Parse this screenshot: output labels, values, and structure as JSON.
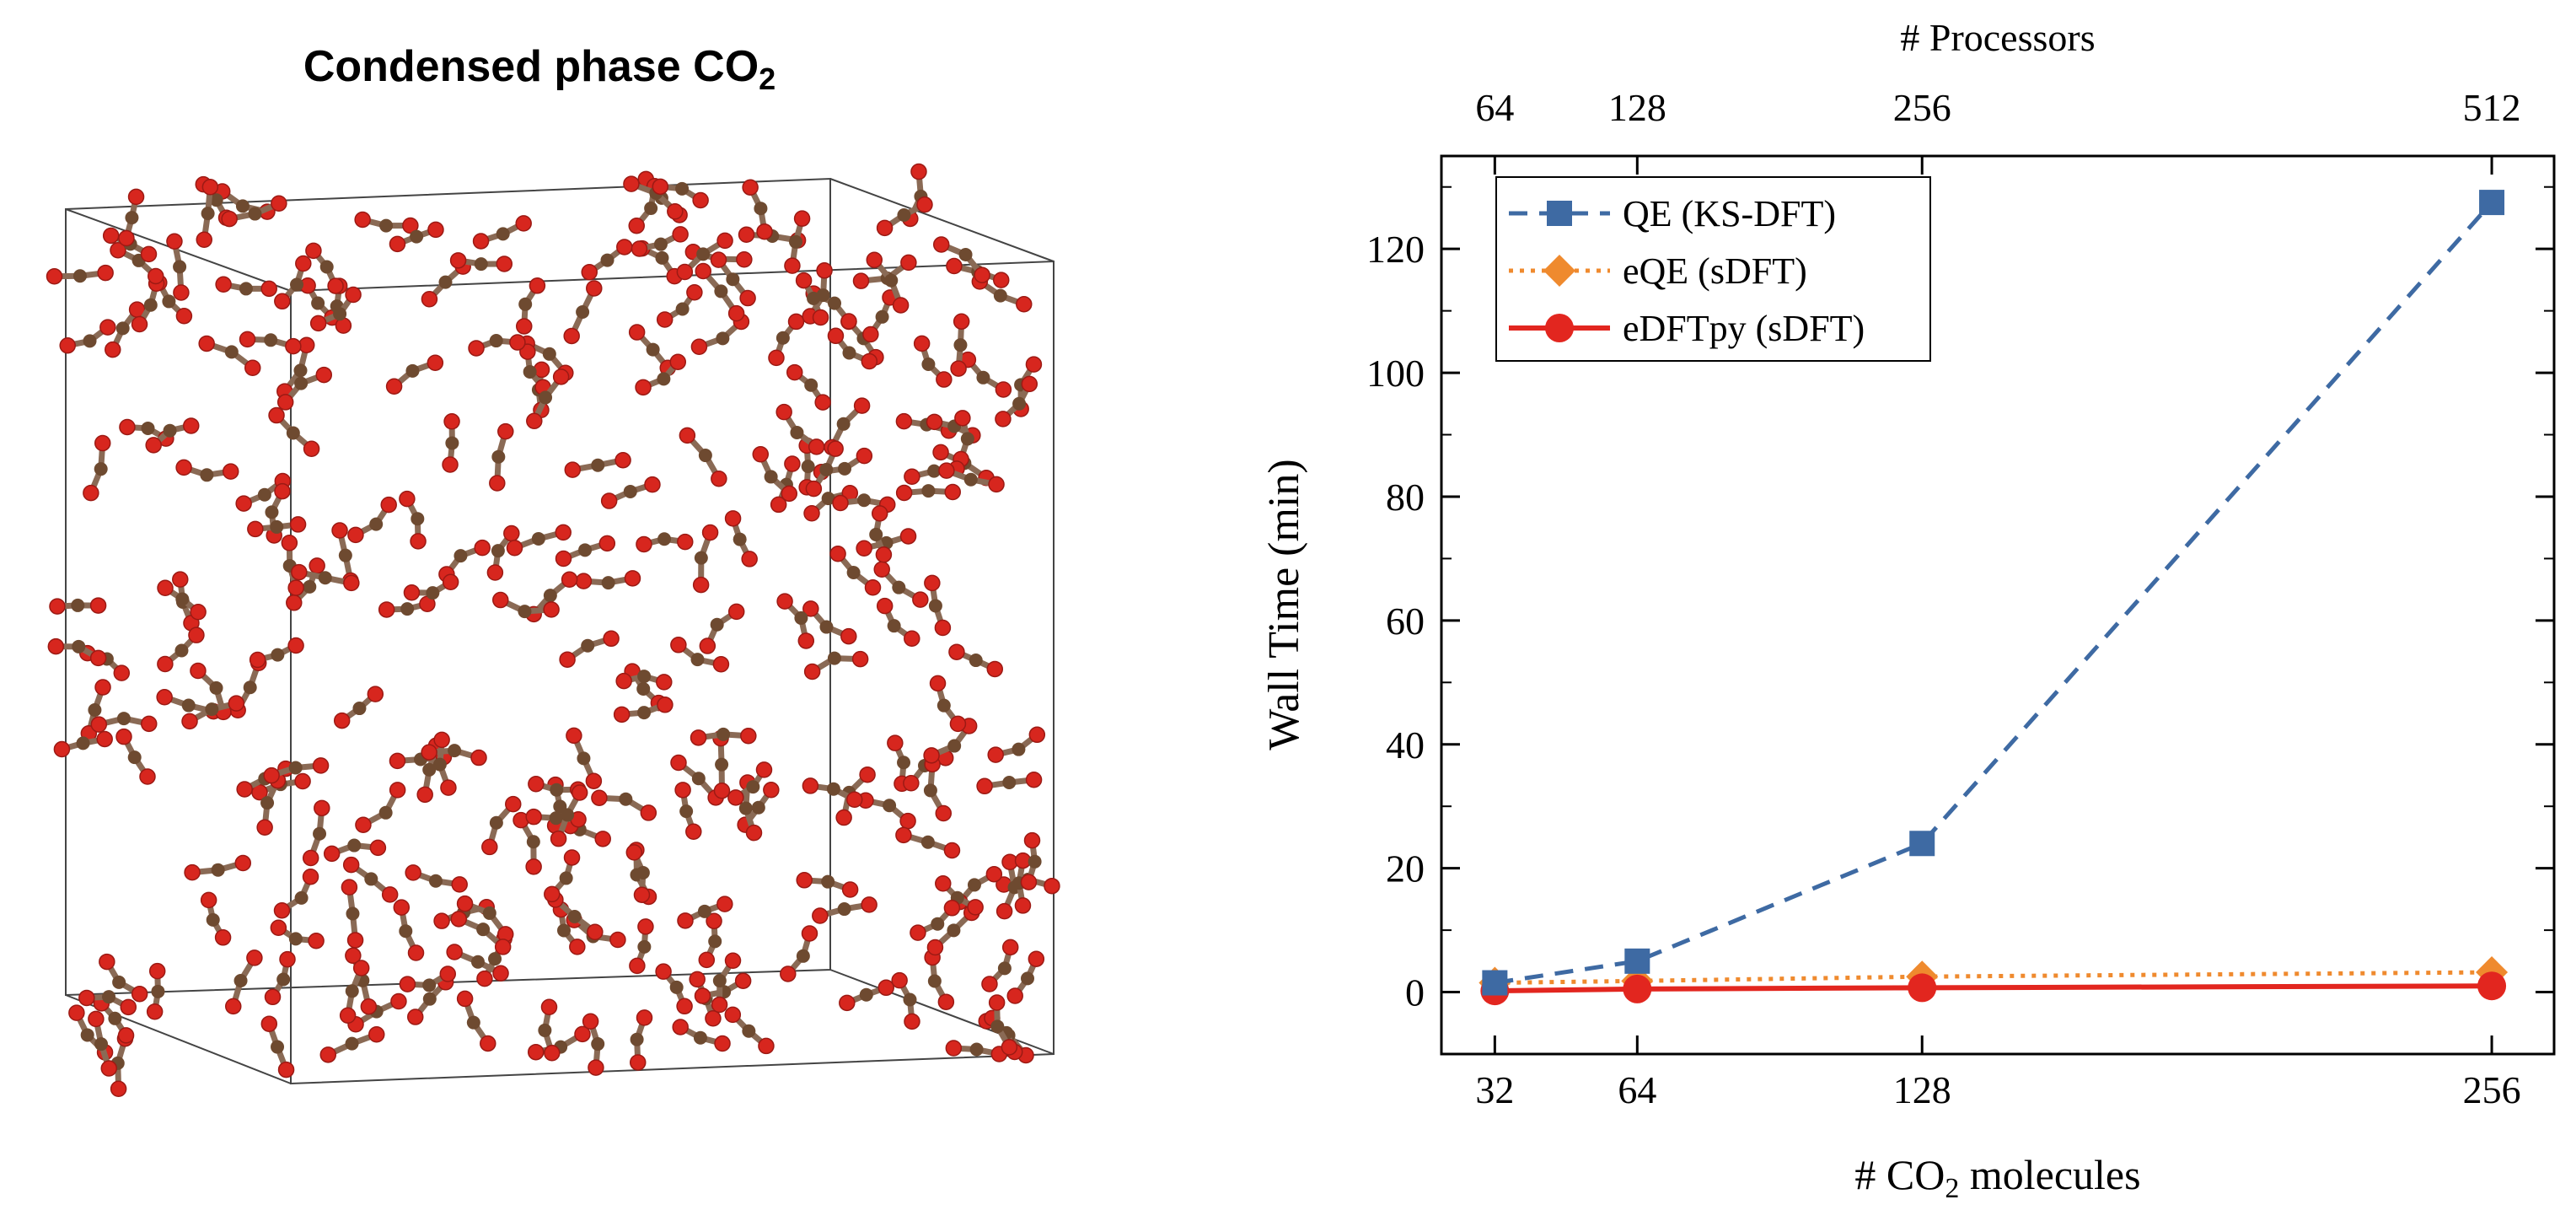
{
  "left_panel": {
    "title": "Condensed phase CO",
    "title_subscript": "2"
  },
  "chart_data": {
    "type": "line",
    "x": [
      32,
      64,
      128,
      256
    ],
    "xlim": [
      20,
      270
    ],
    "xticks": [
      32,
      64,
      128,
      256
    ],
    "xlabel_prefix": "# CO",
    "xlabel_subscript": "2",
    "xlabel_suffix": " molecules",
    "top_axis_label": "# Processors",
    "top_ticks": [
      64,
      128,
      256,
      512
    ],
    "ylabel": "Wall Time (min)",
    "ylim": [
      -10,
      135
    ],
    "yticks": [
      0,
      20,
      40,
      60,
      80,
      100,
      120
    ],
    "grid": false,
    "legend_position": "top-left",
    "series": [
      {
        "name": "QE (KS-DFT)",
        "values": [
          1.5,
          5,
          24,
          127.5
        ],
        "color": "#3e6aa3",
        "style": "dashed",
        "marker": "square"
      },
      {
        "name": "eQE (sDFT)",
        "values": [
          1.5,
          1.8,
          2.5,
          3.2
        ],
        "color": "#ef8a2e",
        "style": "dotted",
        "marker": "diamond"
      },
      {
        "name": "eDFTpy (sDFT)",
        "values": [
          0.2,
          0.5,
          0.7,
          1.0
        ],
        "color": "#e2261f",
        "style": "solid",
        "marker": "circle"
      }
    ]
  }
}
